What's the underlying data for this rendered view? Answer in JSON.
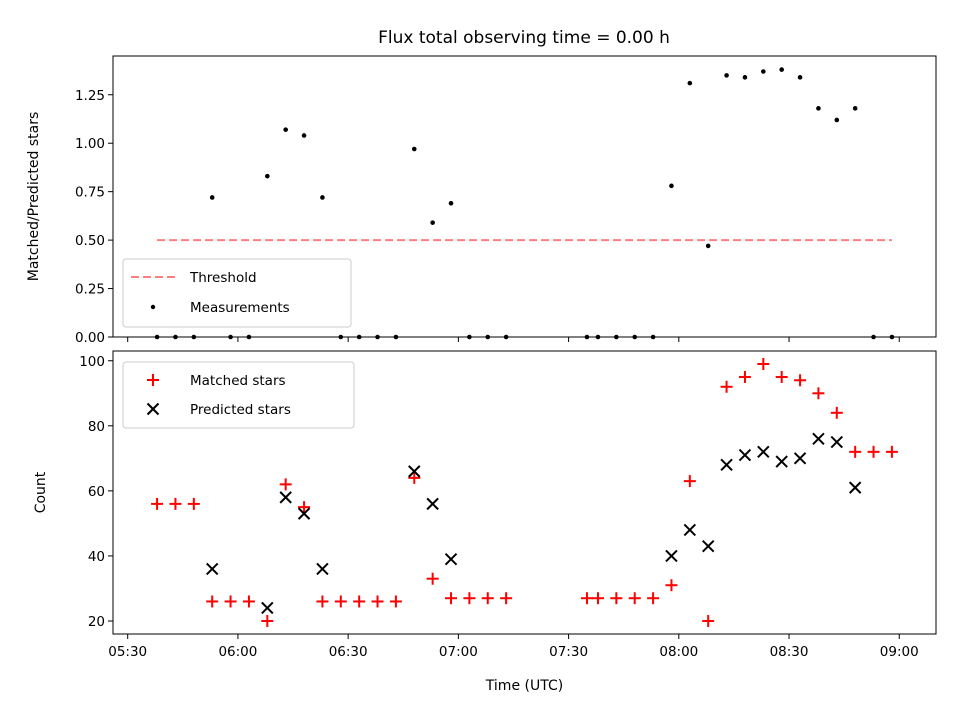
{
  "title": "Flux total observing time = 0.00 h",
  "colors": {
    "threshold": "#ff7f7f",
    "measurement": "#000000",
    "matched": "#ff0000",
    "predicted": "#000000"
  },
  "chart_data": [
    {
      "type": "scatter",
      "title": "Flux total observing time = 0.00 h",
      "xlabel": "",
      "ylabel": "Matched/Predicted stars",
      "xlim": [
        "05:26",
        "09:10"
      ],
      "ylim": [
        0,
        1.45
      ],
      "x_ticks": [
        "05:30",
        "06:00",
        "06:30",
        "07:00",
        "07:30",
        "08:00",
        "08:30",
        "09:00"
      ],
      "y_ticks": [
        "0.00",
        "0.25",
        "0.50",
        "0.75",
        "1.00",
        "1.25"
      ],
      "y_tick_values": [
        0,
        0.25,
        0.5,
        0.75,
        1.0,
        1.25
      ],
      "legend": {
        "placement": "lower-left",
        "entries": [
          "Threshold",
          "Measurements"
        ]
      },
      "series": [
        {
          "name": "Threshold",
          "kind": "line",
          "style": "dashed",
          "x": [
            "05:38",
            "08:58"
          ],
          "values": [
            0.5,
            0.5
          ]
        },
        {
          "name": "Measurements",
          "kind": "scatter",
          "x": [
            "05:38",
            "05:43",
            "05:48",
            "05:53",
            "05:58",
            "06:03",
            "06:08",
            "06:13",
            "06:18",
            "06:23",
            "06:28",
            "06:33",
            "06:38",
            "06:43",
            "06:48",
            "06:53",
            "06:58",
            "07:03",
            "07:08",
            "07:13",
            "07:35",
            "07:38",
            "07:43",
            "07:48",
            "07:53",
            "07:58",
            "08:03",
            "08:08",
            "08:13",
            "08:18",
            "08:23",
            "08:28",
            "08:33",
            "08:38",
            "08:43",
            "08:48",
            "08:53",
            "08:58"
          ],
          "values": [
            0,
            0,
            0,
            0.72,
            0,
            0,
            0.83,
            1.07,
            1.04,
            0.72,
            0,
            0,
            0,
            0,
            0.97,
            0.59,
            0.69,
            0,
            0,
            0,
            0,
            0,
            0,
            0,
            0,
            0.78,
            1.31,
            0.47,
            1.35,
            1.34,
            1.37,
            1.38,
            1.34,
            1.18,
            1.12,
            1.18,
            0,
            0
          ]
        }
      ]
    },
    {
      "type": "scatter",
      "title": "",
      "xlabel": "Time (UTC)",
      "ylabel": "Count",
      "xlim": [
        "05:26",
        "09:10"
      ],
      "ylim": [
        16,
        103
      ],
      "x_ticks": [
        "05:30",
        "06:00",
        "06:30",
        "07:00",
        "07:30",
        "08:00",
        "08:30",
        "09:00"
      ],
      "y_ticks": [
        "20",
        "40",
        "60",
        "80",
        "100"
      ],
      "y_tick_values": [
        20,
        40,
        60,
        80,
        100
      ],
      "legend": {
        "placement": "top-left",
        "entries": [
          "Matched stars",
          "Predicted stars"
        ]
      },
      "series": [
        {
          "name": "Matched stars",
          "marker": "+",
          "x": [
            "05:38",
            "05:43",
            "05:48",
            "05:53",
            "05:58",
            "06:03",
            "06:08",
            "06:13",
            "06:18",
            "06:23",
            "06:28",
            "06:33",
            "06:38",
            "06:43",
            "06:48",
            "06:53",
            "06:58",
            "07:03",
            "07:08",
            "07:13",
            "07:35",
            "07:38",
            "07:43",
            "07:48",
            "07:53",
            "07:58",
            "08:03",
            "08:08",
            "08:13",
            "08:18",
            "08:23",
            "08:28",
            "08:33",
            "08:38",
            "08:43",
            "08:48",
            "08:53",
            "08:58"
          ],
          "values": [
            56,
            56,
            56,
            26,
            26,
            26,
            20,
            62,
            55,
            26,
            26,
            26,
            26,
            26,
            64,
            33,
            27,
            27,
            27,
            27,
            27,
            27,
            27,
            27,
            27,
            31,
            63,
            20,
            92,
            95,
            99,
            95,
            94,
            90,
            84,
            72,
            72,
            72
          ]
        },
        {
          "name": "Predicted stars",
          "marker": "x",
          "x": [
            "05:53",
            "06:08",
            "06:13",
            "06:18",
            "06:23",
            "06:48",
            "06:53",
            "06:58",
            "07:58",
            "08:03",
            "08:08",
            "08:13",
            "08:18",
            "08:23",
            "08:28",
            "08:33",
            "08:38",
            "08:43",
            "08:48"
          ],
          "values": [
            36,
            24,
            58,
            53,
            36,
            66,
            56,
            39,
            40,
            48,
            43,
            68,
            71,
            72,
            69,
            70,
            76,
            75,
            61
          ]
        }
      ]
    }
  ]
}
